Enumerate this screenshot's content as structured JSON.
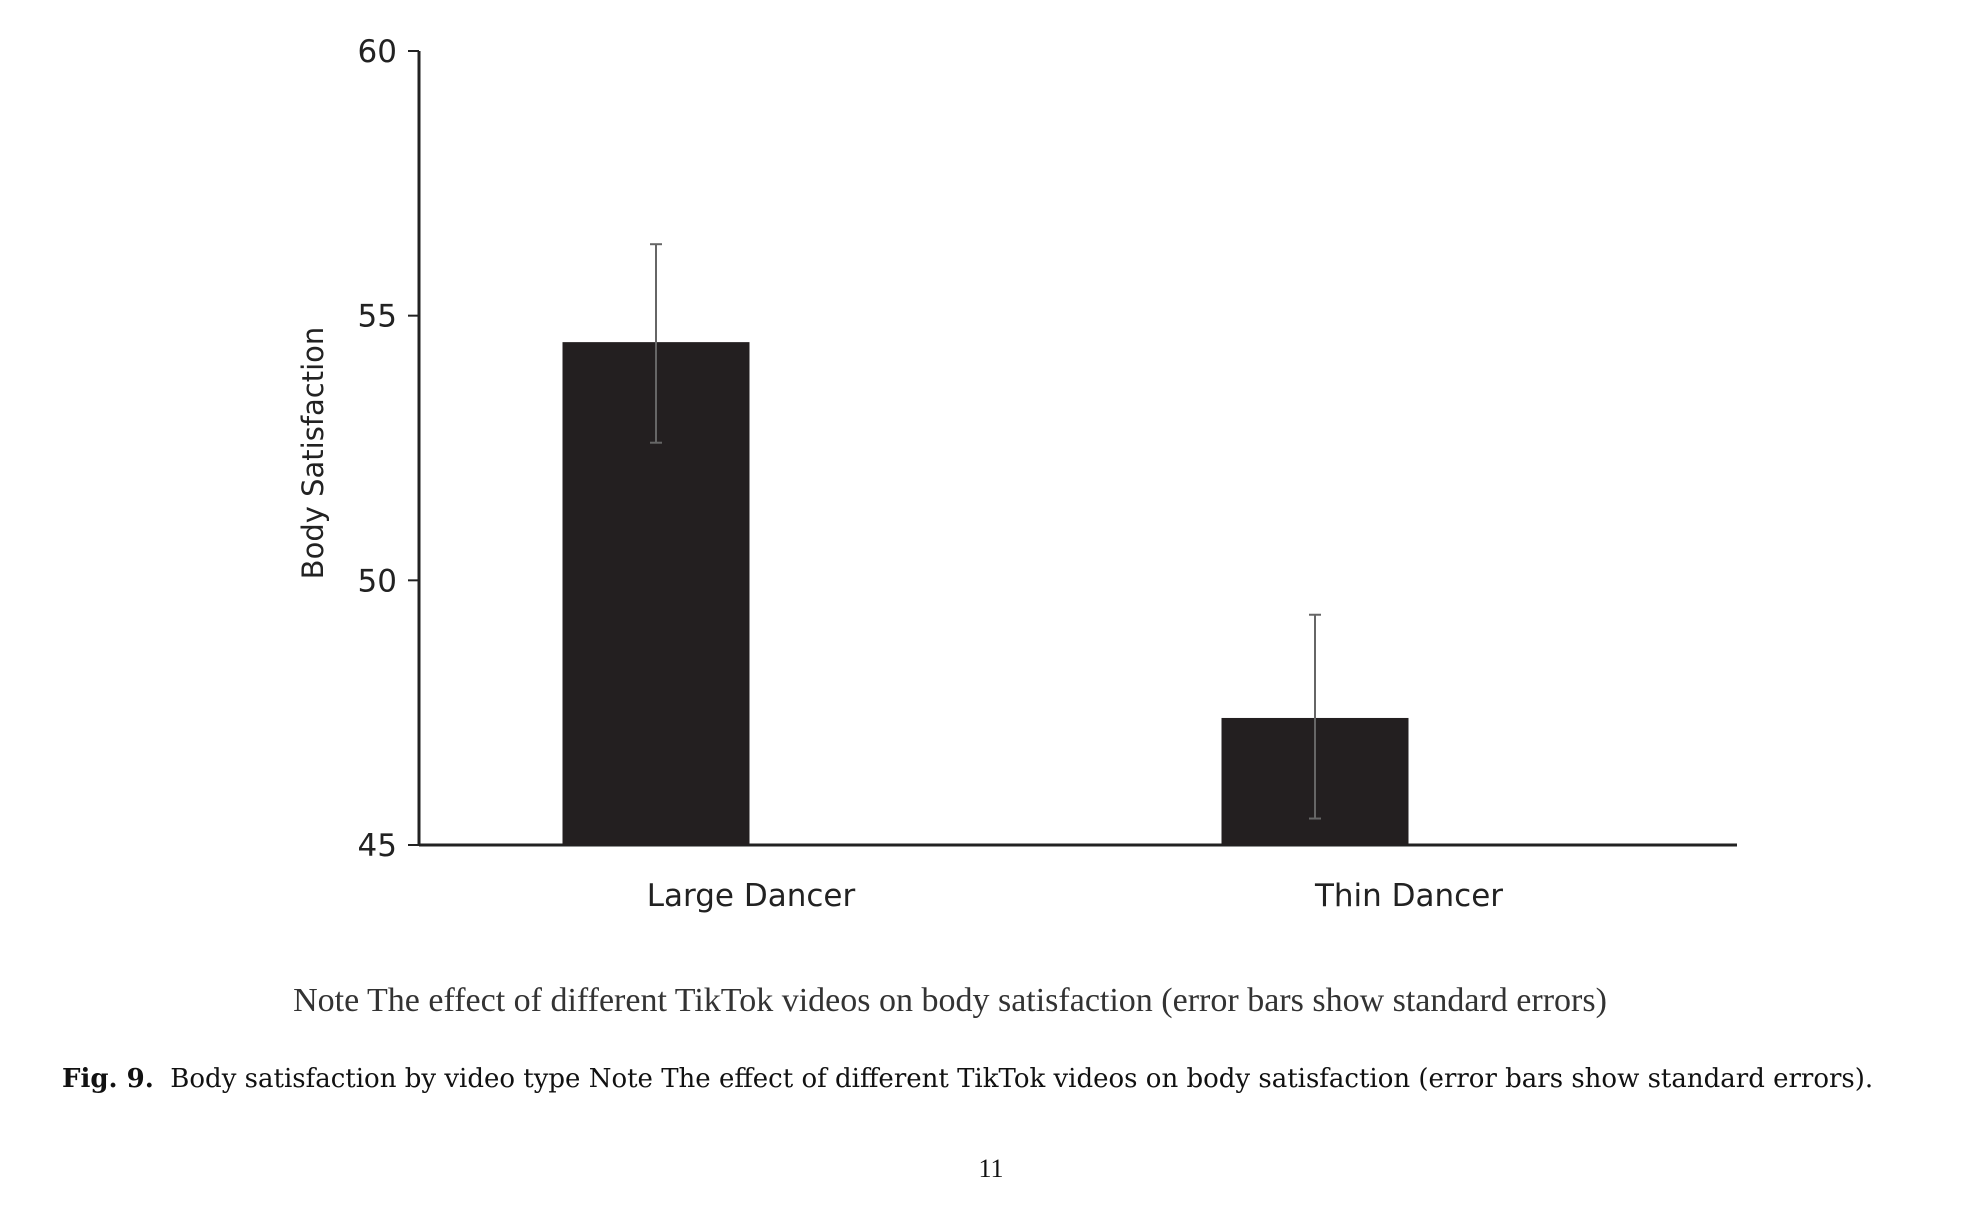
{
  "chart_data": {
    "type": "bar",
    "title": "",
    "xlabel": "",
    "ylabel": "Body Satisfaction",
    "ylim": [
      45,
      60
    ],
    "yticks": [
      45,
      50,
      55,
      60
    ],
    "categories": [
      "Large Dancer",
      "Thin Dancer"
    ],
    "values": [
      54.5,
      47.4
    ],
    "error_bars": {
      "type": "standard error",
      "lower": [
        52.6,
        45.5
      ],
      "upper": [
        56.35,
        49.35
      ]
    },
    "grid": false,
    "bar_color": "#231f20"
  },
  "note": "Note The effect of different TikTok videos on body satisfaction (error bars show standard errors)",
  "figure_caption": {
    "label": "Fig. 9.",
    "text": "Body satisfaction by video type Note The effect of different TikTok videos on body satisfaction (error bars show standard errors)."
  },
  "page_number": "11"
}
